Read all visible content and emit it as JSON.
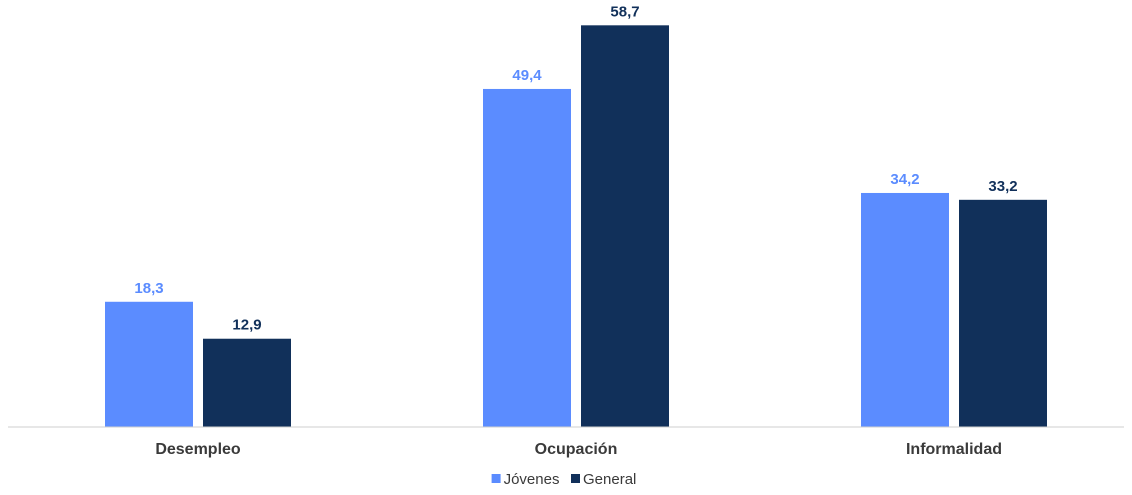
{
  "chart_data": {
    "type": "bar",
    "title": "",
    "xlabel": "",
    "ylabel": "",
    "ylim": [
      0,
      65
    ],
    "grid": false,
    "legend_position": "bottom",
    "categories": [
      "Desempleo",
      "Ocupación",
      "Informalidad"
    ],
    "series": [
      {
        "name": "Jóvenes",
        "color": "#5b8cff",
        "values": [
          18.3,
          49.4,
          34.2
        ],
        "labels": [
          "18,3",
          "49,4",
          "34,2"
        ]
      },
      {
        "name": "General",
        "color": "#11305a",
        "values": [
          12.9,
          58.7,
          33.2
        ],
        "labels": [
          "12,9",
          "58,7",
          "33,2"
        ]
      }
    ]
  }
}
